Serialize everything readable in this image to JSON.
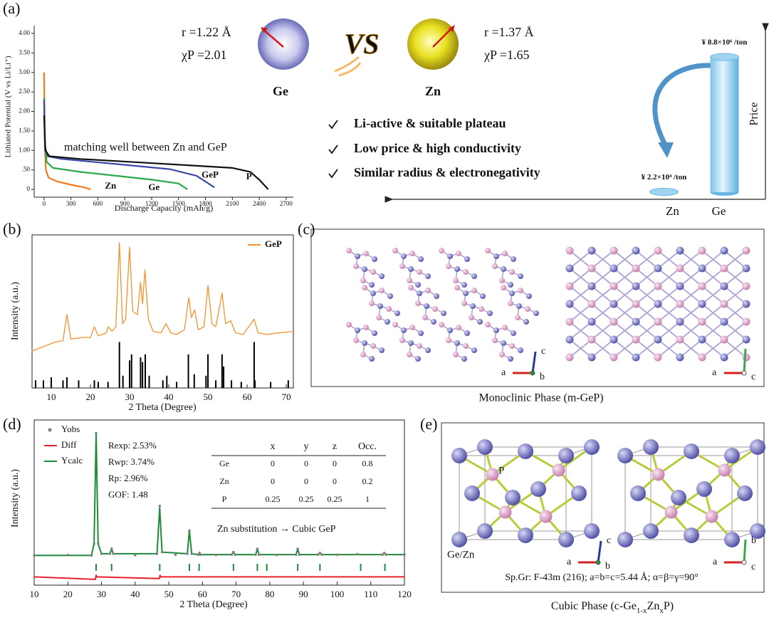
{
  "panel_labels": [
    "(a)",
    "(b)",
    "(c)",
    "(d)",
    "(e)"
  ],
  "chart_data": [
    {
      "type": "line",
      "xlabel": "Discharge Capacity (mAh/g)",
      "ylabel": "Lithiated Potential (V vs Li/Li⁺)",
      "annotation": "matching well between Zn and GeP",
      "xlim": [
        -110,
        2780
      ],
      "ylim": [
        -0.2,
        4.2
      ],
      "xticks": [
        0,
        300,
        600,
        900,
        1200,
        1500,
        1800,
        2100,
        2400,
        2700
      ],
      "yticks": [
        0,
        {
          "value": 0.5,
          "label": ".50"
        },
        {
          "value": 1,
          "label": "1.00"
        },
        {
          "value": 1.5,
          "label": "1.50"
        },
        {
          "value": 2,
          "label": "2.00"
        },
        {
          "value": 2.5,
          "label": "2.50"
        },
        {
          "value": 3,
          "label": "3.00"
        },
        {
          "value": 3.5,
          "label": "3.50"
        },
        {
          "value": 4,
          "label": "4.00"
        }
      ],
      "series": [
        {
          "name": "Zn",
          "color": "#f07b1f",
          "x": [
            0,
            5,
            10,
            20,
            50,
            150,
            300,
            450,
            520
          ],
          "values": [
            3.0,
            2.0,
            1.0,
            0.5,
            0.3,
            0.2,
            0.12,
            0.05,
            0
          ]
        },
        {
          "name": "Ge",
          "color": "#2aa84a",
          "x": [
            0,
            10,
            30,
            100,
            400,
            800,
            1200,
            1500,
            1600
          ],
          "values": [
            2.35,
            1.2,
            0.7,
            0.55,
            0.45,
            0.35,
            0.25,
            0.15,
            0
          ]
        },
        {
          "name": "GeP",
          "color": "#3a4aa8",
          "x": [
            0,
            10,
            40,
            200,
            800,
            1400,
            1700,
            1900
          ],
          "values": [
            2.3,
            1.1,
            0.85,
            0.78,
            0.65,
            0.52,
            0.35,
            0.05
          ]
        },
        {
          "name": "P",
          "color": "#111111",
          "x": [
            0,
            15,
            60,
            400,
            1000,
            1600,
            2100,
            2300,
            2400,
            2500
          ],
          "values": [
            1.9,
            1.0,
            0.85,
            0.78,
            0.7,
            0.62,
            0.55,
            0.45,
            0.25,
            0
          ]
        }
      ]
    },
    {
      "type": "bar",
      "ylabel": "Price",
      "categories": [
        "Zn",
        "Ge"
      ],
      "values": [
        22000,
        8800000
      ],
      "value_labels": [
        "¥ 2.2×10⁴ /ton",
        "¥ 8.8×10⁶ /ton"
      ],
      "color": "#9fd3f0",
      "ylim": [
        0,
        9500000
      ]
    },
    {
      "type": "line",
      "xlabel": "2 Theta (Degree)",
      "ylabel": "Intensity (a.u.)",
      "xlim": [
        5.1,
        71.8
      ],
      "ylim": [
        0,
        100
      ],
      "xticks": [
        10,
        20,
        30,
        40,
        50,
        60,
        70
      ],
      "legend": "upper right",
      "series": [
        {
          "name": "GeP",
          "color": "#f0922e",
          "x": [
            5,
            8,
            11,
            13,
            14,
            15,
            18,
            20,
            21,
            22,
            24,
            24.6,
            25.5,
            26.5,
            27.4,
            28.2,
            29,
            30,
            30.8,
            32,
            32.8,
            33.3,
            33.9,
            34.8,
            36,
            38,
            39.3,
            40.5,
            42,
            44,
            45.1,
            45.8,
            46.6,
            47.5,
            49,
            50,
            51,
            52,
            53.6,
            54.5,
            55.8,
            57,
            59,
            61.8,
            62.8,
            65,
            68,
            72
          ],
          "values": [
            24,
            27,
            30,
            31,
            48,
            32,
            33,
            33,
            40,
            34,
            36,
            40,
            37,
            40,
            95,
            42,
            45,
            92,
            50,
            48,
            69,
            55,
            77,
            45,
            37,
            36,
            42,
            36,
            35,
            38,
            59,
            46,
            51,
            38,
            40,
            67,
            42,
            40,
            62,
            42,
            44,
            36,
            35,
            45,
            36,
            35,
            36,
            37
          ]
        }
      ],
      "reference_peaks": {
        "color": "#000000",
        "x": [
          6,
          8,
          10,
          13,
          14,
          17,
          21,
          22,
          24.5,
          27.4,
          28.3,
          30,
          30.5,
          32.8,
          33.3,
          34,
          35,
          38.5,
          39.5,
          42,
          45,
          46.5,
          49.5,
          50,
          52,
          53.6,
          54,
          56,
          58.5,
          61.8,
          62,
          66,
          70.5
        ],
        "values": [
          5,
          5,
          7,
          5,
          7,
          5,
          5,
          4,
          4,
          30,
          8,
          18,
          22,
          20,
          17,
          22,
          8,
          5,
          8,
          4,
          22,
          9,
          8,
          22,
          5,
          22,
          14,
          5,
          4,
          30,
          5,
          4,
          5
        ]
      }
    },
    {
      "type": "line",
      "xlabel": "2 Theta (Degree)",
      "ylabel": "Intensity (a.u.)",
      "xlim": [
        10,
        120
      ],
      "ylim": [
        0,
        100
      ],
      "xticks": [
        10,
        20,
        30,
        40,
        50,
        60,
        70,
        80,
        90,
        100,
        110,
        120
      ],
      "legend": "upper left",
      "series": [
        {
          "name": "Yobs",
          "color": "#808080",
          "marker": "dots",
          "x": [
            10,
            20,
            27,
            27.8,
            28.4,
            29,
            30,
            32.5,
            33,
            33.5,
            40,
            46.5,
            47.3,
            48,
            52,
            55.5,
            56.1,
            56.8,
            58.8,
            59.1,
            59.4,
            64,
            68.7,
            69.2,
            69.7,
            75.8,
            76.3,
            76.8,
            82,
            87.8,
            88.3,
            88.8,
            94.4,
            94.9,
            95.4,
            100,
            106,
            113.5,
            114,
            114.5,
            120
          ],
          "values": [
            18,
            18.3,
            18,
            25,
            92,
            25,
            19,
            19,
            22,
            19,
            18.2,
            19,
            48,
            20,
            18.4,
            19,
            33,
            19,
            18.5,
            19.5,
            18.5,
            18.3,
            18.5,
            20,
            18.5,
            18.5,
            22,
            18.5,
            18.3,
            18.5,
            22,
            18.5,
            18.5,
            19.5,
            18.5,
            18.4,
            18.8,
            18.5,
            19.5,
            18.5,
            18.5
          ]
        },
        {
          "name": "Diff",
          "color": "#e8202a",
          "x": [
            10,
            28.2,
            28.4,
            28.6,
            47.2,
            47.4,
            47.6,
            120
          ],
          "values": [
            5,
            3.5,
            6,
            5,
            4,
            6,
            5,
            5
          ]
        },
        {
          "name": "Ycalc",
          "color": "#1e8a3c",
          "x": [
            10,
            27,
            27.8,
            28.4,
            29,
            30,
            32.5,
            33,
            33.5,
            46.5,
            47.3,
            48,
            55.5,
            56.1,
            56.8,
            58.8,
            59.1,
            59.4,
            68.7,
            69.2,
            69.7,
            75.8,
            76.3,
            76.8,
            87.8,
            88.3,
            88.8,
            94.4,
            94.9,
            95.4,
            113.5,
            114,
            114.5,
            120
          ],
          "values": [
            18,
            18,
            25,
            92,
            25,
            19,
            19,
            22,
            19,
            19,
            47,
            20,
            19,
            33,
            19,
            18.5,
            19.5,
            18.5,
            18.5,
            20,
            18.5,
            18.5,
            22,
            18.5,
            18.5,
            22,
            18.5,
            18.5,
            19.5,
            18.5,
            18.5,
            19.5,
            18.5,
            18.5
          ]
        }
      ],
      "bragg_positions": {
        "color": "#1e8a3c",
        "x": [
          28.4,
          33,
          47.3,
          56.1,
          59,
          69.2,
          76.3,
          79.1,
          88.3,
          94.9,
          107,
          114.2
        ]
      },
      "annotations": [
        "Rexp: 2.53%",
        "Rwp: 3.74%",
        "Rp: 2.96%",
        "GOF: 1.48"
      ],
      "table": {
        "columns": [
          "x",
          "y",
          "z",
          "Occ."
        ],
        "rows": [
          [
            "Ge",
            0,
            0,
            0,
            0.8
          ],
          [
            "Zn",
            0,
            0,
            0,
            0.2
          ],
          [
            "P",
            0.25,
            0.25,
            0.25,
            1
          ]
        ]
      },
      "note": "Zn substitution → Cubic GeP"
    }
  ],
  "comparison": {
    "elements": [
      {
        "name": "Ge",
        "radius": "r =1.22 Å",
        "electronegativity": "χP =2.01"
      },
      {
        "name": "Zn",
        "radius": "r =1.37 Å",
        "electronegativity": "χP =1.65"
      }
    ],
    "vs": "VS",
    "checklist": [
      "Li-active & suitable plateau",
      "Low price & high conductivity",
      "Similar radius & electronegativity"
    ]
  },
  "panel_c": {
    "axes_left": [
      "a",
      "c",
      "b"
    ],
    "axes_right": [
      "a",
      "c"
    ],
    "caption": "Monoclinic Phase (m-GeP)"
  },
  "panel_e": {
    "atom_labels": [
      "P",
      "Ge/Zn"
    ],
    "axes_left": [
      "a",
      "c",
      "b"
    ],
    "axes_right": [
      "a",
      "b",
      "c"
    ],
    "spec": "Sp.Gr: F-43m (216); a=b=c=5.44 Å; α=β=γ=90°",
    "caption_parts": [
      "Cubic Phase (c-Ge",
      "1-x",
      "Zn",
      "x",
      "P)"
    ]
  }
}
